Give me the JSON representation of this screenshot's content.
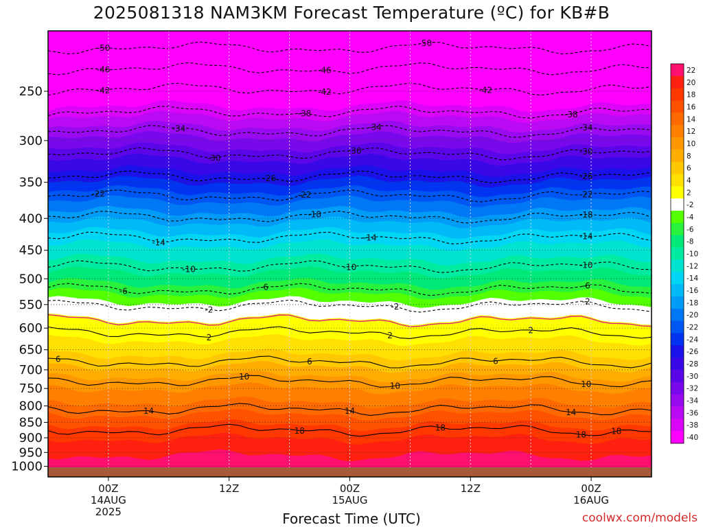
{
  "title": "2025081318 NAM3KM Forecast Temperature (ºC) for KB#B",
  "credit": "coolwx.com/models",
  "chart_data": {
    "type": "heatmap",
    "title": "2025081318 NAM3KM Forecast Temperature (ºC) for KB#B",
    "xlabel": "Forecast Time (UTC)",
    "ylabel": "",
    "y_axis": {
      "scale": "log",
      "reversed": true,
      "ylim_hpa": [
        1040,
        200
      ],
      "ticks": [
        250,
        300,
        350,
        400,
        450,
        500,
        550,
        600,
        650,
        700,
        750,
        800,
        850,
        900,
        950,
        1000
      ]
    },
    "x_axis": {
      "xlim_hours": [
        -6,
        54
      ],
      "ticks": [
        {
          "hour": 0,
          "lines": [
            "00Z",
            "14AUG",
            "2025"
          ]
        },
        {
          "hour": 12,
          "lines": [
            "12Z"
          ]
        },
        {
          "hour": 24,
          "lines": [
            "00Z",
            "15AUG"
          ]
        },
        {
          "hour": 36,
          "lines": [
            "12Z"
          ]
        },
        {
          "hour": 48,
          "lines": [
            "00Z",
            "16AUG"
          ]
        }
      ]
    },
    "grid": true,
    "colorbar": {
      "position": "right",
      "levels": [
        22,
        20,
        18,
        16,
        14,
        12,
        10,
        8,
        6,
        4,
        2,
        -2,
        -4,
        -6,
        -8,
        -10,
        -12,
        -14,
        -16,
        -18,
        -20,
        -22,
        -24,
        -26,
        -28,
        -30,
        -32,
        -34,
        -36,
        -38,
        -40
      ],
      "colors": [
        "#ff0f6f",
        "#ff2010",
        "#ff3800",
        "#ff5200",
        "#ff6a00",
        "#ff8000",
        "#ff9700",
        "#ffad00",
        "#ffc800",
        "#ffe000",
        "#ffff00",
        "#ffffff",
        "#54ff00",
        "#28f23e",
        "#00e878",
        "#00eaa2",
        "#00e4cf",
        "#00d6f4",
        "#00baf8",
        "#009cf8",
        "#0078f5",
        "#0056f2",
        "#0034f0",
        "#1a12e8",
        "#3a08e6",
        "#5a06e8",
        "#7a08ec",
        "#9a0af0",
        "#ba0af4",
        "#da04f8",
        "#ff00ff"
      ]
    },
    "isotherms": [
      {
        "label": "-50",
        "pressure": 213,
        "label_hours": [
          -0.5,
          31.5
        ]
      },
      {
        "label": "-46",
        "pressure": 230,
        "label_hours": [
          -0.5,
          21.5
        ]
      },
      {
        "label": "-42",
        "pressure": 248,
        "label_hours": [
          -0.5,
          21.5,
          37.5
        ]
      },
      {
        "label": "-38",
        "pressure": 270,
        "label_hours": [
          19.5,
          46
        ]
      },
      {
        "label": "-34",
        "pressure": 290,
        "label_hours": [
          7,
          26.5,
          47.5
        ]
      },
      {
        "label": "-30",
        "pressure": 315,
        "label_hours": [
          10.5,
          24.5,
          47.5
        ]
      },
      {
        "label": "-26",
        "pressure": 343,
        "label_hours": [
          16,
          47.5
        ]
      },
      {
        "label": "-22",
        "pressure": 368,
        "label_hours": [
          -1,
          19.5,
          47.5
        ]
      },
      {
        "label": "-18",
        "pressure": 398,
        "label_hours": [
          20.5,
          47.5
        ]
      },
      {
        "label": "-14",
        "pressure": 430,
        "label_hours": [
          5,
          26,
          47.5
        ]
      },
      {
        "label": "-10",
        "pressure": 478,
        "label_hours": [
          8,
          24,
          47.5
        ]
      },
      {
        "label": "-6",
        "pressure": 520,
        "label_hours": [
          1.5,
          15.5,
          47.5
        ]
      },
      {
        "label": "-2",
        "pressure": 553,
        "label_hours": [
          10,
          28.5,
          47.5
        ]
      },
      {
        "label": "2",
        "pressure": 610,
        "label_hours": [
          10,
          28,
          42
        ]
      },
      {
        "label": "6",
        "pressure": 680,
        "label_hours": [
          -5,
          20,
          38.5
        ]
      },
      {
        "label": "10",
        "pressure": 730,
        "label_hours": [
          13.5,
          28.5,
          47.5
        ]
      },
      {
        "label": "14",
        "pressure": 810,
        "label_hours": [
          4,
          24,
          46
        ]
      },
      {
        "label": "18",
        "pressure": 875,
        "label_hours": [
          19,
          33,
          47,
          50.5
        ]
      }
    ]
  }
}
